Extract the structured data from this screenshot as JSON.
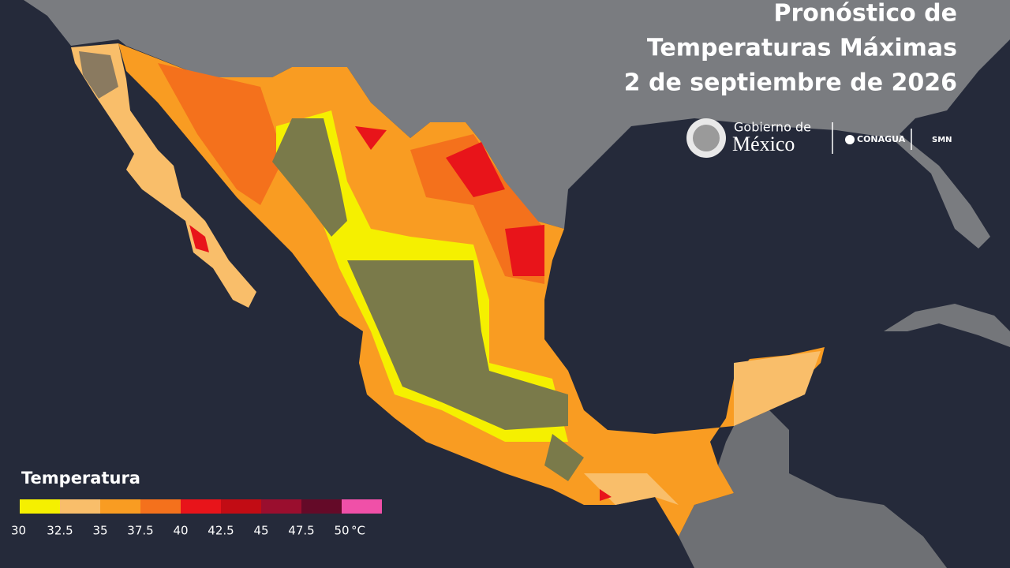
{
  "header": {
    "title": [
      "Pronóstico de",
      "Temperaturas Máximas",
      "2 de septiembre de 2026"
    ]
  },
  "logos": {
    "gobierno_line1": "Gobierno de",
    "gobierno_line2": "México",
    "conagua": "CONAGUA",
    "smn": "SMN"
  },
  "legend": {
    "title": "Temperatura",
    "ticks": [
      30,
      32.5,
      35,
      37.5,
      40,
      42.5,
      45,
      47.5,
      50
    ],
    "unit": "°C",
    "colors": [
      "#f5f000",
      "#f9be6a",
      "#f99c22",
      "#f4711c",
      "#e8141a",
      "#c20c14",
      "#9a0e2e",
      "#640a28",
      "#f050a8"
    ]
  }
}
